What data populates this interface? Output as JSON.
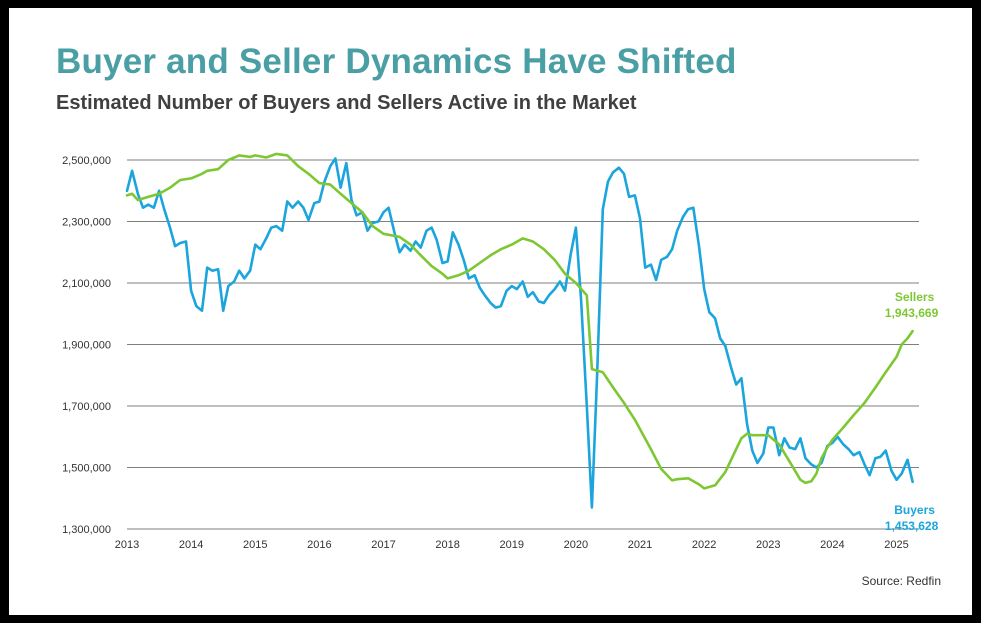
{
  "title": "Buyer and Seller Dynamics Have Shifted",
  "subtitle": "Estimated Number of Buyers and Sellers Active in the Market",
  "source": "Source: Redfin",
  "colors": {
    "title": "#4a9fa5",
    "buyers": "#1ba5dc",
    "sellers": "#7dc832",
    "grid": "#555555"
  },
  "chart_data": {
    "type": "line",
    "ylim": [
      1300000,
      2500000
    ],
    "y_ticks": [
      1300000,
      1500000,
      1700000,
      1900000,
      2100000,
      2300000,
      2500000
    ],
    "y_tick_labels": [
      "1,300,000",
      "1,500,000",
      "1,700,000",
      "1,900,000",
      "2,100,000",
      "2,300,000",
      "2,500,000"
    ],
    "x_ticks": [
      2013,
      2014,
      2015,
      2016,
      2017,
      2018,
      2019,
      2020,
      2021,
      2022,
      2023,
      2024,
      2025
    ],
    "x_tick_labels": [
      "2013",
      "2014",
      "2015",
      "2016",
      "2017",
      "2018",
      "2019",
      "2020",
      "2021",
      "2022",
      "2023",
      "2024",
      "2025"
    ],
    "xlim": [
      2013,
      2025.35
    ],
    "grid": "horizontal",
    "series": [
      {
        "name": "Buyers",
        "end_label": "1,453,628",
        "color": "#1ba5dc",
        "points": [
          [
            2013.0,
            2400000
          ],
          [
            2013.08,
            2465000
          ],
          [
            2013.17,
            2390000
          ],
          [
            2013.25,
            2345000
          ],
          [
            2013.33,
            2355000
          ],
          [
            2013.42,
            2345000
          ],
          [
            2013.5,
            2400000
          ],
          [
            2013.58,
            2340000
          ],
          [
            2013.67,
            2280000
          ],
          [
            2013.75,
            2220000
          ],
          [
            2013.83,
            2230000
          ],
          [
            2013.92,
            2235000
          ],
          [
            2014.0,
            2075000
          ],
          [
            2014.08,
            2025000
          ],
          [
            2014.17,
            2010000
          ],
          [
            2014.25,
            2150000
          ],
          [
            2014.33,
            2140000
          ],
          [
            2014.42,
            2145000
          ],
          [
            2014.5,
            2010000
          ],
          [
            2014.58,
            2090000
          ],
          [
            2014.67,
            2105000
          ],
          [
            2014.75,
            2140000
          ],
          [
            2014.83,
            2115000
          ],
          [
            2014.92,
            2140000
          ],
          [
            2015.0,
            2225000
          ],
          [
            2015.08,
            2210000
          ],
          [
            2015.17,
            2245000
          ],
          [
            2015.25,
            2280000
          ],
          [
            2015.33,
            2285000
          ],
          [
            2015.42,
            2270000
          ],
          [
            2015.5,
            2365000
          ],
          [
            2015.58,
            2345000
          ],
          [
            2015.67,
            2365000
          ],
          [
            2015.75,
            2345000
          ],
          [
            2015.83,
            2305000
          ],
          [
            2015.92,
            2360000
          ],
          [
            2016.0,
            2365000
          ],
          [
            2016.08,
            2430000
          ],
          [
            2016.17,
            2480000
          ],
          [
            2016.25,
            2505000
          ],
          [
            2016.33,
            2410000
          ],
          [
            2016.42,
            2490000
          ],
          [
            2016.5,
            2370000
          ],
          [
            2016.58,
            2320000
          ],
          [
            2016.67,
            2330000
          ],
          [
            2016.75,
            2270000
          ],
          [
            2016.83,
            2295000
          ],
          [
            2016.92,
            2300000
          ],
          [
            2017.0,
            2330000
          ],
          [
            2017.08,
            2345000
          ],
          [
            2017.17,
            2265000
          ],
          [
            2017.25,
            2200000
          ],
          [
            2017.33,
            2225000
          ],
          [
            2017.42,
            2205000
          ],
          [
            2017.5,
            2235000
          ],
          [
            2017.58,
            2215000
          ],
          [
            2017.67,
            2270000
          ],
          [
            2017.75,
            2280000
          ],
          [
            2017.83,
            2240000
          ],
          [
            2017.92,
            2165000
          ],
          [
            2018.0,
            2170000
          ],
          [
            2018.08,
            2265000
          ],
          [
            2018.17,
            2225000
          ],
          [
            2018.25,
            2175000
          ],
          [
            2018.33,
            2115000
          ],
          [
            2018.42,
            2125000
          ],
          [
            2018.5,
            2085000
          ],
          [
            2018.58,
            2060000
          ],
          [
            2018.67,
            2035000
          ],
          [
            2018.75,
            2020000
          ],
          [
            2018.83,
            2025000
          ],
          [
            2018.92,
            2075000
          ],
          [
            2019.0,
            2090000
          ],
          [
            2019.08,
            2080000
          ],
          [
            2019.17,
            2105000
          ],
          [
            2019.25,
            2055000
          ],
          [
            2019.33,
            2070000
          ],
          [
            2019.42,
            2040000
          ],
          [
            2019.5,
            2035000
          ],
          [
            2019.58,
            2060000
          ],
          [
            2019.67,
            2080000
          ],
          [
            2019.75,
            2105000
          ],
          [
            2019.83,
            2075000
          ],
          [
            2019.92,
            2195000
          ],
          [
            2020.0,
            2280000
          ],
          [
            2020.08,
            2050000
          ],
          [
            2020.17,
            1700000
          ],
          [
            2020.25,
            1370000
          ],
          [
            2020.33,
            1800000
          ],
          [
            2020.42,
            2340000
          ],
          [
            2020.5,
            2430000
          ],
          [
            2020.58,
            2460000
          ],
          [
            2020.67,
            2475000
          ],
          [
            2020.75,
            2455000
          ],
          [
            2020.83,
            2380000
          ],
          [
            2020.92,
            2385000
          ],
          [
            2021.0,
            2310000
          ],
          [
            2021.08,
            2150000
          ],
          [
            2021.17,
            2160000
          ],
          [
            2021.25,
            2110000
          ],
          [
            2021.33,
            2175000
          ],
          [
            2021.42,
            2185000
          ],
          [
            2021.5,
            2210000
          ],
          [
            2021.58,
            2270000
          ],
          [
            2021.67,
            2315000
          ],
          [
            2021.75,
            2340000
          ],
          [
            2021.83,
            2345000
          ],
          [
            2021.92,
            2220000
          ],
          [
            2022.0,
            2080000
          ],
          [
            2022.08,
            2005000
          ],
          [
            2022.17,
            1985000
          ],
          [
            2022.25,
            1920000
          ],
          [
            2022.33,
            1895000
          ],
          [
            2022.42,
            1825000
          ],
          [
            2022.5,
            1770000
          ],
          [
            2022.58,
            1790000
          ],
          [
            2022.67,
            1640000
          ],
          [
            2022.75,
            1555000
          ],
          [
            2022.83,
            1515000
          ],
          [
            2022.92,
            1545000
          ],
          [
            2023.0,
            1630000
          ],
          [
            2023.08,
            1630000
          ],
          [
            2023.17,
            1540000
          ],
          [
            2023.25,
            1595000
          ],
          [
            2023.33,
            1565000
          ],
          [
            2023.42,
            1560000
          ],
          [
            2023.5,
            1595000
          ],
          [
            2023.58,
            1530000
          ],
          [
            2023.67,
            1510000
          ],
          [
            2023.75,
            1500000
          ],
          [
            2023.83,
            1515000
          ],
          [
            2023.92,
            1570000
          ],
          [
            2024.0,
            1580000
          ],
          [
            2024.08,
            1600000
          ],
          [
            2024.17,
            1575000
          ],
          [
            2024.25,
            1560000
          ],
          [
            2024.33,
            1540000
          ],
          [
            2024.42,
            1550000
          ],
          [
            2024.5,
            1510000
          ],
          [
            2024.58,
            1475000
          ],
          [
            2024.67,
            1530000
          ],
          [
            2024.75,
            1535000
          ],
          [
            2024.83,
            1555000
          ],
          [
            2024.92,
            1490000
          ],
          [
            2025.0,
            1460000
          ],
          [
            2025.08,
            1480000
          ],
          [
            2025.17,
            1525000
          ],
          [
            2025.25,
            1453628
          ]
        ]
      },
      {
        "name": "Sellers",
        "end_label": "1,943,669",
        "color": "#7dc832",
        "points": [
          [
            2013.0,
            2385000
          ],
          [
            2013.08,
            2390000
          ],
          [
            2013.17,
            2370000
          ],
          [
            2013.33,
            2380000
          ],
          [
            2013.5,
            2390000
          ],
          [
            2013.67,
            2410000
          ],
          [
            2013.83,
            2435000
          ],
          [
            2014.0,
            2440000
          ],
          [
            2014.17,
            2455000
          ],
          [
            2014.25,
            2465000
          ],
          [
            2014.42,
            2470000
          ],
          [
            2014.58,
            2500000
          ],
          [
            2014.75,
            2515000
          ],
          [
            2014.92,
            2510000
          ],
          [
            2015.0,
            2515000
          ],
          [
            2015.17,
            2508000
          ],
          [
            2015.33,
            2520000
          ],
          [
            2015.5,
            2515000
          ],
          [
            2015.67,
            2480000
          ],
          [
            2015.83,
            2455000
          ],
          [
            2016.0,
            2425000
          ],
          [
            2016.17,
            2420000
          ],
          [
            2016.33,
            2390000
          ],
          [
            2016.5,
            2360000
          ],
          [
            2016.67,
            2330000
          ],
          [
            2016.83,
            2285000
          ],
          [
            2017.0,
            2260000
          ],
          [
            2017.25,
            2250000
          ],
          [
            2017.42,
            2225000
          ],
          [
            2017.58,
            2190000
          ],
          [
            2017.75,
            2155000
          ],
          [
            2017.92,
            2130000
          ],
          [
            2018.0,
            2115000
          ],
          [
            2018.17,
            2125000
          ],
          [
            2018.33,
            2140000
          ],
          [
            2018.5,
            2165000
          ],
          [
            2018.67,
            2190000
          ],
          [
            2018.83,
            2210000
          ],
          [
            2019.0,
            2225000
          ],
          [
            2019.17,
            2245000
          ],
          [
            2019.33,
            2235000
          ],
          [
            2019.5,
            2210000
          ],
          [
            2019.67,
            2175000
          ],
          [
            2019.83,
            2130000
          ],
          [
            2020.0,
            2100000
          ],
          [
            2020.17,
            2060000
          ],
          [
            2020.25,
            1820000
          ],
          [
            2020.42,
            1810000
          ],
          [
            2020.58,
            1760000
          ],
          [
            2020.75,
            1710000
          ],
          [
            2020.92,
            1655000
          ],
          [
            2021.0,
            1625000
          ],
          [
            2021.17,
            1560000
          ],
          [
            2021.33,
            1495000
          ],
          [
            2021.5,
            1458000
          ],
          [
            2021.58,
            1462000
          ],
          [
            2021.75,
            1465000
          ],
          [
            2021.92,
            1445000
          ],
          [
            2022.0,
            1432000
          ],
          [
            2022.17,
            1442000
          ],
          [
            2022.33,
            1485000
          ],
          [
            2022.5,
            1560000
          ],
          [
            2022.58,
            1595000
          ],
          [
            2022.67,
            1610000
          ],
          [
            2022.75,
            1605000
          ],
          [
            2022.92,
            1605000
          ],
          [
            2023.0,
            1605000
          ],
          [
            2023.17,
            1575000
          ],
          [
            2023.33,
            1520000
          ],
          [
            2023.5,
            1460000
          ],
          [
            2023.58,
            1450000
          ],
          [
            2023.67,
            1455000
          ],
          [
            2023.75,
            1480000
          ],
          [
            2023.83,
            1530000
          ],
          [
            2023.92,
            1565000
          ],
          [
            2024.0,
            1590000
          ],
          [
            2024.17,
            1630000
          ],
          [
            2024.33,
            1670000
          ],
          [
            2024.5,
            1710000
          ],
          [
            2024.67,
            1760000
          ],
          [
            2024.83,
            1810000
          ],
          [
            2025.0,
            1860000
          ],
          [
            2025.08,
            1900000
          ],
          [
            2025.17,
            1920000
          ],
          [
            2025.25,
            1943669
          ]
        ]
      }
    ]
  }
}
